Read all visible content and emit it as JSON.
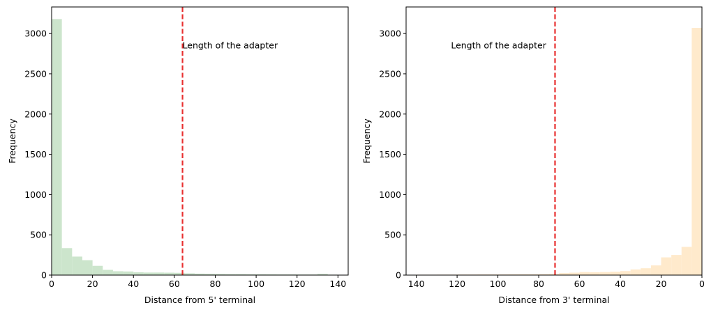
{
  "chart_data": [
    {
      "type": "histogram",
      "title": "",
      "xlabel": "Distance from 5' terminal",
      "ylabel": "Frequency",
      "xlim": [
        0,
        145
      ],
      "ylim": [
        0,
        3330
      ],
      "x_reversed": false,
      "xticks": [
        0,
        20,
        40,
        60,
        80,
        100,
        120,
        140
      ],
      "yticks": [
        0,
        500,
        1000,
        1500,
        2000,
        2500,
        3000
      ],
      "bin_width": 5,
      "bin_starts": [
        0,
        5,
        10,
        15,
        20,
        25,
        30,
        35,
        40,
        45,
        50,
        55,
        60,
        65,
        70,
        75,
        80,
        85,
        90,
        95,
        100,
        105,
        110,
        115,
        120,
        125,
        130,
        135
      ],
      "values": [
        3180,
        335,
        230,
        185,
        115,
        65,
        48,
        45,
        35,
        32,
        32,
        30,
        28,
        22,
        18,
        16,
        14,
        12,
        12,
        10,
        10,
        9,
        8,
        8,
        7,
        7,
        15,
        5
      ],
      "bar_color": "#cce5cc",
      "vline": {
        "x": 64,
        "color": "#e83030",
        "style": "dashed"
      },
      "annotation": {
        "text": "Length of the adapter",
        "x": 64,
        "y": 2850
      }
    },
    {
      "type": "histogram",
      "title": "",
      "xlabel": "Distance from 3' terminal",
      "ylabel": "Frequency",
      "xlim": [
        145,
        0
      ],
      "ylim": [
        0,
        3330
      ],
      "x_reversed": true,
      "xticks": [
        140,
        120,
        100,
        80,
        60,
        40,
        20,
        0
      ],
      "yticks": [
        0,
        500,
        1000,
        1500,
        2000,
        2500,
        3000
      ],
      "bin_width": 5,
      "bin_starts": [
        0,
        5,
        10,
        15,
        20,
        25,
        30,
        35,
        40,
        45,
        50,
        55,
        60,
        65,
        70,
        75,
        80,
        85,
        90,
        95,
        100,
        105,
        110,
        115,
        120,
        125,
        130,
        135
      ],
      "values": [
        3070,
        350,
        250,
        220,
        120,
        85,
        70,
        50,
        42,
        38,
        35,
        38,
        30,
        25,
        15,
        12,
        10,
        10,
        9,
        8,
        8,
        8,
        7,
        7,
        6,
        6,
        5,
        5
      ],
      "bar_color": "#ffeacc",
      "vline": {
        "x": 72,
        "color": "#e83030",
        "style": "dashed"
      },
      "annotation": {
        "text": "Length of the adapter",
        "x": 123,
        "y": 2850
      }
    }
  ]
}
